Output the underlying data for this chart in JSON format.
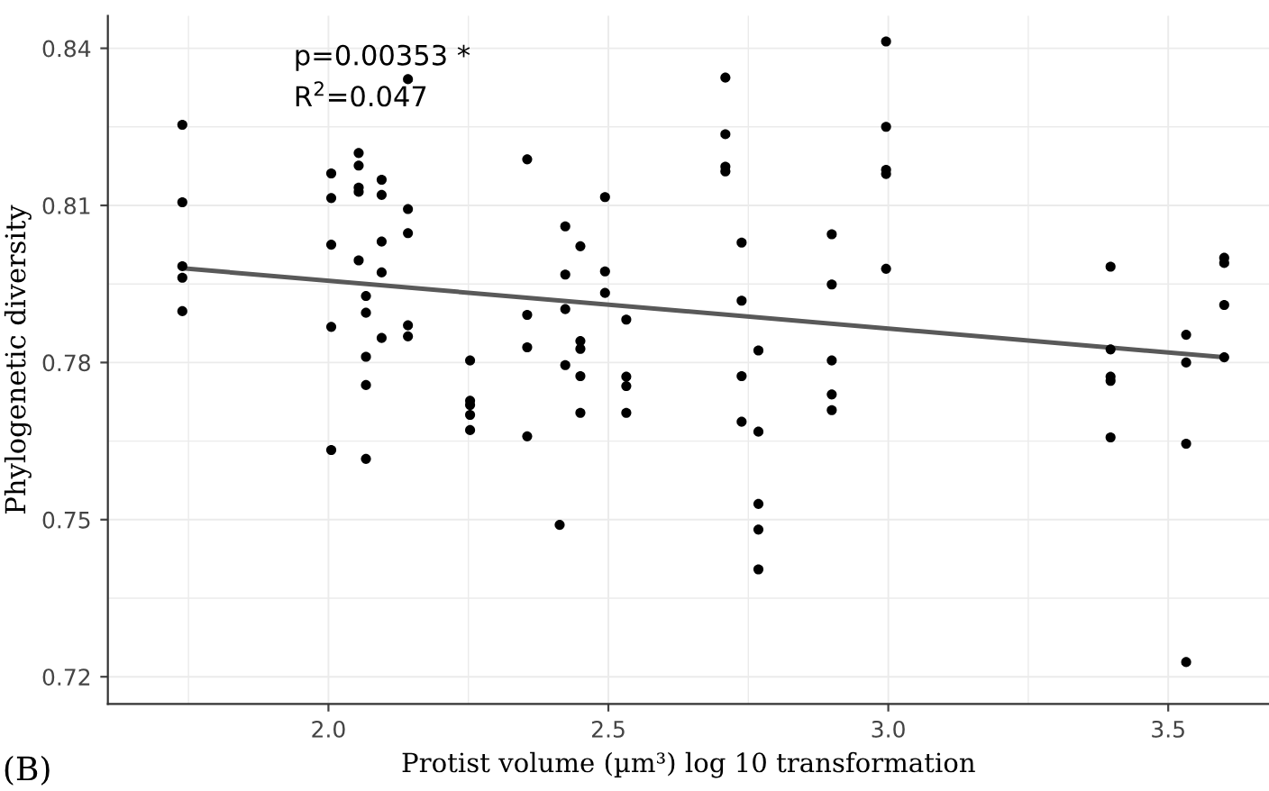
{
  "chart_data": {
    "type": "scatter",
    "xlabel": "Protist volume (µm³) log 10 transformation",
    "ylabel": "Phylogenetic diversity",
    "annotations": [
      "p=0.00353 *",
      "R$^{2}$=0.047",
      "(B)"
    ],
    "xlim": [
      1.606,
      3.68
    ],
    "ylim": [
      0.7148,
      0.8462
    ],
    "xticks": [
      {
        "value": 2.0,
        "label": "2.0"
      },
      2.5,
      {
        "value": 3.0,
        "label": "3.0"
      },
      3.5
    ],
    "yticks": [
      {
        "value": 0.72,
        "label": "0.72"
      },
      {
        "value": 0.75,
        "label": "0.75"
      },
      {
        "value": 0.78,
        "label": "0.78"
      },
      {
        "value": 0.81,
        "label": "0.81"
      },
      {
        "value": 0.84,
        "label": "0.84"
      }
    ],
    "grid": true,
    "series": [
      {
        "marker": "circle",
        "color": "#000000",
        "x": [
          1.739,
          1.739,
          1.739,
          1.739,
          1.739,
          2.005,
          2.005,
          2.005,
          2.005,
          2.005,
          2.054,
          2.054,
          2.054,
          2.054,
          2.054,
          2.067,
          2.067,
          2.067,
          2.067,
          2.067,
          2.095,
          2.095,
          2.095,
          2.095,
          2.095,
          2.142,
          2.142,
          2.142,
          2.142,
          2.142,
          2.253,
          2.253,
          2.253,
          2.253,
          2.253,
          2.355,
          2.355,
          2.355,
          2.355,
          2.413,
          2.423,
          2.423,
          2.423,
          2.423,
          2.45,
          2.45,
          2.45,
          2.45,
          2.45,
          2.494,
          2.494,
          2.494,
          2.532,
          2.532,
          2.532,
          2.532,
          2.709,
          2.709,
          2.709,
          2.709,
          2.738,
          2.738,
          2.738,
          2.738,
          2.768,
          2.768,
          2.768,
          2.768,
          2.768,
          2.899,
          2.899,
          2.899,
          2.899,
          2.899,
          2.996,
          2.996,
          2.996,
          2.996,
          2.996,
          3.397,
          3.397,
          3.397,
          3.397,
          3.397,
          3.532,
          3.532,
          3.532,
          3.532,
          3.6,
          3.6,
          3.6,
          3.6
        ],
        "values": [
          0.8254,
          0.8106,
          0.7984,
          0.7962,
          0.7898,
          0.8161,
          0.8114,
          0.8025,
          0.7868,
          0.7633,
          0.82,
          0.8176,
          0.8134,
          0.8126,
          0.7995,
          0.7927,
          0.7895,
          0.7811,
          0.7757,
          0.7616,
          0.8149,
          0.812,
          0.8031,
          0.7972,
          0.7847,
          0.8341,
          0.8093,
          0.8047,
          0.7871,
          0.785,
          0.7804,
          0.7727,
          0.7719,
          0.77,
          0.7671,
          0.8188,
          0.7891,
          0.7829,
          0.7659,
          0.749,
          0.806,
          0.7968,
          0.7902,
          0.7795,
          0.8022,
          0.7841,
          0.7826,
          0.7774,
          0.7704,
          0.8116,
          0.7974,
          0.7933,
          0.7882,
          0.7773,
          0.7755,
          0.7704,
          0.8344,
          0.8236,
          0.8174,
          0.8165,
          0.8029,
          0.7918,
          0.7774,
          0.7687,
          0.7823,
          0.7668,
          0.753,
          0.7481,
          0.7405,
          0.8045,
          0.7949,
          0.7804,
          0.7739,
          0.7709,
          0.8413,
          0.825,
          0.8168,
          0.816,
          0.7979,
          0.7983,
          0.7825,
          0.7773,
          0.7765,
          0.7657,
          0.7853,
          0.78,
          0.7645,
          0.7228,
          0.8,
          0.799,
          0.791,
          0.781
        ]
      },
      {
        "type": "line",
        "marker": "none",
        "color": "#595959",
        "x": [
          1.739,
          3.6
        ],
        "values": [
          0.798,
          0.781
        ]
      }
    ]
  }
}
